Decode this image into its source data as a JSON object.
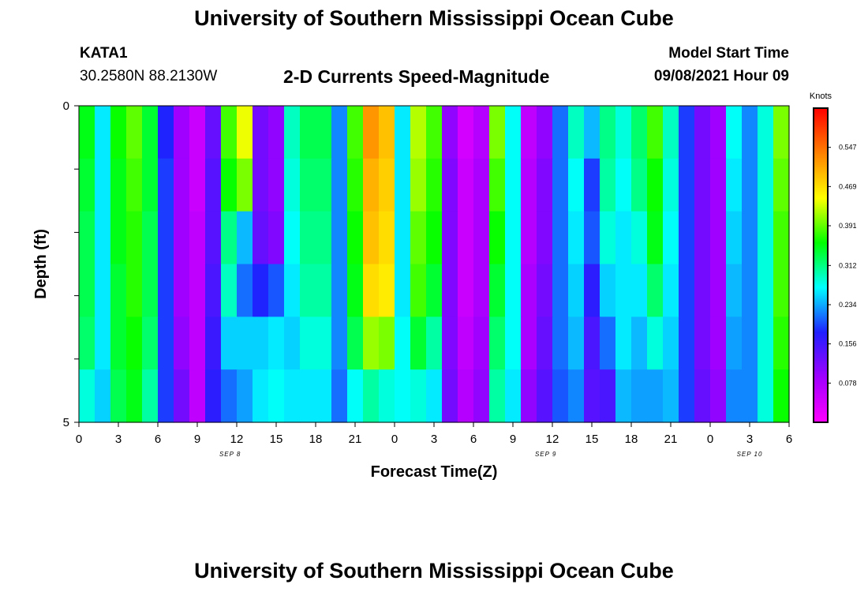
{
  "header": {
    "title": "University of Southern Mississippi Ocean Cube",
    "station": "KATA1",
    "coordinates": "30.2580N  88.2130W",
    "subtitle": "2-D Currents Speed-Magnitude",
    "model_start_label": "Model Start Time",
    "model_start_value": "09/08/2021 Hour 09"
  },
  "footer": {
    "title": "University of Southern Mississippi Ocean Cube"
  },
  "chart_data": {
    "type": "heatmap",
    "xlabel": "Forecast Time(Z)",
    "ylabel": "Depth (ft)",
    "colorbar_label": "Knots",
    "colorbar_ticks": [
      "0.547",
      "0.469",
      "0.391",
      "0.312",
      "0.234",
      "0.156",
      "0.078"
    ],
    "color_range": [
      0.0,
      0.625
    ],
    "colormap": [
      "#ff00ff",
      "#a000ff",
      "#2020ff",
      "#00ffff",
      "#00ff00",
      "#ffff00",
      "#ff8000",
      "#ff0000"
    ],
    "x_hours_range": [
      0,
      54
    ],
    "x_tick_labels": [
      "0",
      "3",
      "6",
      "9",
      "12",
      "15",
      "18",
      "21",
      "0",
      "3",
      "6",
      "9",
      "12",
      "15",
      "18",
      "21",
      "0",
      "3",
      "6"
    ],
    "date_labels": [
      {
        "label": "SEP 8",
        "hour": 11.5
      },
      {
        "label": "SEP 9",
        "hour": 35.5
      },
      {
        "label": "SEP 10",
        "hour": 51.0
      }
    ],
    "y_tick_labels": [
      "0",
      "5"
    ],
    "y_range": [
      0,
      5
    ],
    "depth_levels": 5,
    "series": [
      {
        "values": [
          0.35,
          0.26,
          0.36,
          0.39,
          0.34,
          0.18,
          0.09,
          0.05,
          0.13,
          0.38,
          0.44,
          0.12,
          0.1,
          0.29,
          0.33,
          0.33,
          0.22,
          0.38,
          0.52,
          0.49,
          0.26,
          0.42,
          0.38,
          0.1,
          0.04,
          0.07,
          0.4,
          0.27,
          0.06,
          0.1,
          0.21,
          0.29,
          0.24,
          0.31,
          0.28,
          0.32,
          0.38,
          0.29,
          0.19,
          0.12,
          0.09,
          0.27,
          0.22,
          0.28,
          0.4
        ]
      },
      {
        "values": [
          0.34,
          0.26,
          0.35,
          0.38,
          0.34,
          0.19,
          0.09,
          0.05,
          0.14,
          0.36,
          0.4,
          0.12,
          0.1,
          0.28,
          0.32,
          0.32,
          0.22,
          0.37,
          0.5,
          0.48,
          0.26,
          0.41,
          0.37,
          0.11,
          0.05,
          0.08,
          0.38,
          0.27,
          0.07,
          0.11,
          0.21,
          0.27,
          0.19,
          0.3,
          0.27,
          0.31,
          0.36,
          0.28,
          0.19,
          0.12,
          0.09,
          0.26,
          0.22,
          0.28,
          0.39
        ]
      },
      {
        "values": [
          0.33,
          0.26,
          0.35,
          0.37,
          0.33,
          0.19,
          0.09,
          0.06,
          0.14,
          0.31,
          0.24,
          0.13,
          0.11,
          0.27,
          0.31,
          0.31,
          0.22,
          0.36,
          0.49,
          0.47,
          0.26,
          0.39,
          0.36,
          0.11,
          0.05,
          0.08,
          0.36,
          0.27,
          0.07,
          0.11,
          0.21,
          0.26,
          0.2,
          0.28,
          0.26,
          0.28,
          0.35,
          0.27,
          0.19,
          0.12,
          0.09,
          0.25,
          0.22,
          0.28,
          0.38
        ]
      },
      {
        "values": [
          0.33,
          0.26,
          0.34,
          0.37,
          0.33,
          0.19,
          0.09,
          0.06,
          0.15,
          0.29,
          0.21,
          0.18,
          0.2,
          0.26,
          0.3,
          0.3,
          0.22,
          0.35,
          0.47,
          0.46,
          0.26,
          0.38,
          0.34,
          0.11,
          0.05,
          0.08,
          0.34,
          0.27,
          0.08,
          0.12,
          0.21,
          0.25,
          0.17,
          0.25,
          0.26,
          0.26,
          0.32,
          0.26,
          0.19,
          0.12,
          0.09,
          0.24,
          0.22,
          0.28,
          0.38
        ]
      },
      {
        "values": [
          0.32,
          0.26,
          0.34,
          0.36,
          0.32,
          0.19,
          0.1,
          0.06,
          0.16,
          0.25,
          0.25,
          0.25,
          0.26,
          0.25,
          0.28,
          0.28,
          0.22,
          0.33,
          0.41,
          0.4,
          0.27,
          0.34,
          0.3,
          0.11,
          0.06,
          0.09,
          0.32,
          0.27,
          0.08,
          0.13,
          0.21,
          0.24,
          0.15,
          0.21,
          0.26,
          0.24,
          0.28,
          0.25,
          0.19,
          0.12,
          0.09,
          0.23,
          0.22,
          0.28,
          0.37
        ]
      },
      {
        "values": [
          0.28,
          0.25,
          0.33,
          0.35,
          0.3,
          0.19,
          0.12,
          0.06,
          0.17,
          0.21,
          0.23,
          0.26,
          0.27,
          0.26,
          0.26,
          0.26,
          0.21,
          0.27,
          0.3,
          0.28,
          0.27,
          0.28,
          0.26,
          0.12,
          0.07,
          0.1,
          0.3,
          0.26,
          0.1,
          0.14,
          0.2,
          0.22,
          0.14,
          0.15,
          0.24,
          0.23,
          0.23,
          0.24,
          0.19,
          0.13,
          0.1,
          0.22,
          0.22,
          0.28,
          0.36
        ]
      }
    ]
  }
}
